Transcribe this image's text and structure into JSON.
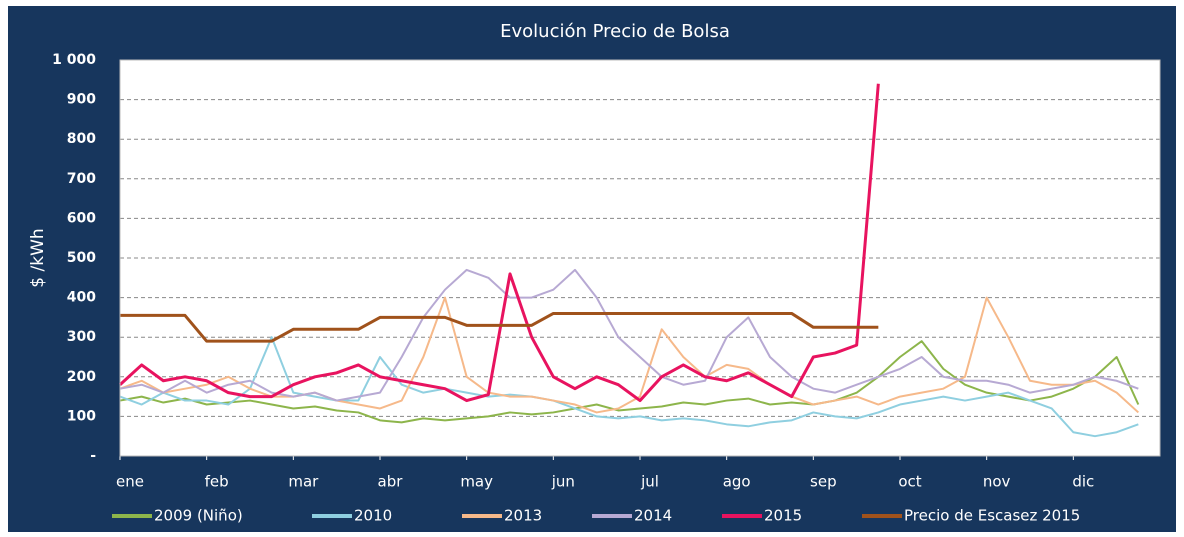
{
  "chart_data": {
    "type": "line",
    "title": "Evolución Precio de Bolsa",
    "y_label": "$ /kWh",
    "background": "#17365d",
    "xlim": [
      0,
      12
    ],
    "xticks": [
      {
        "value": 0,
        "label": "ene"
      },
      {
        "value": 1,
        "label": "feb"
      },
      {
        "value": 2,
        "label": "mar"
      },
      {
        "value": 3,
        "label": "abr"
      },
      {
        "value": 4,
        "label": "may"
      },
      {
        "value": 5,
        "label": "jun"
      },
      {
        "value": 6,
        "label": "jul"
      },
      {
        "value": 7,
        "label": "ago"
      },
      {
        "value": 8,
        "label": "sep"
      },
      {
        "value": 9,
        "label": "oct"
      },
      {
        "value": 10,
        "label": "nov"
      },
      {
        "value": 11,
        "label": "dic"
      }
    ],
    "ylim": [
      0,
      1000
    ],
    "yticks": [
      {
        "value": 0,
        "label": "-"
      },
      100,
      200,
      300,
      400,
      500,
      600,
      700,
      800,
      900,
      {
        "value": 1000,
        "label": "1 000"
      }
    ],
    "grid": true,
    "x": [
      0,
      0.25,
      0.5,
      0.75,
      1,
      1.25,
      1.5,
      1.75,
      2,
      2.25,
      2.5,
      2.75,
      3,
      3.25,
      3.5,
      3.75,
      4,
      4.25,
      4.5,
      4.75,
      5,
      5.25,
      5.5,
      5.75,
      6,
      6.25,
      6.5,
      6.75,
      7,
      7.25,
      7.5,
      7.75,
      8,
      8.25,
      8.5,
      8.75,
      9,
      9.25,
      9.5,
      9.75,
      10,
      10.25,
      10.5,
      10.75,
      11,
      11.25,
      11.5,
      11.75
    ],
    "series": [
      {
        "name": "2009 (Niño)",
        "color": "#8db54b",
        "width": 2,
        "values": [
          140,
          150,
          135,
          145,
          130,
          135,
          140,
          130,
          120,
          125,
          115,
          110,
          90,
          85,
          95,
          90,
          95,
          100,
          110,
          105,
          110,
          120,
          130,
          115,
          120,
          125,
          135,
          130,
          140,
          145,
          130,
          135,
          130,
          140,
          160,
          200,
          250,
          290,
          220,
          180,
          160,
          150,
          140,
          150,
          170,
          200,
          250,
          130
        ]
      },
      {
        "name": "2010",
        "color": "#8fcfe0",
        "width": 2,
        "values": [
          150,
          130,
          160,
          140,
          140,
          130,
          170,
          300,
          160,
          150,
          140,
          140,
          250,
          180,
          160,
          170,
          160,
          150,
          155,
          150,
          140,
          120,
          100,
          95,
          100,
          90,
          95,
          90,
          80,
          75,
          85,
          90,
          110,
          100,
          95,
          110,
          130,
          140,
          150,
          140,
          150,
          160,
          140,
          120,
          60,
          50,
          60,
          80
        ]
      },
      {
        "name": "2013",
        "color": "#f6b98a",
        "width": 2,
        "values": [
          170,
          190,
          160,
          170,
          180,
          200,
          170,
          150,
          150,
          160,
          140,
          130,
          120,
          140,
          250,
          400,
          200,
          160,
          150,
          150,
          140,
          130,
          110,
          120,
          150,
          320,
          250,
          200,
          230,
          220,
          180,
          150,
          130,
          140,
          150,
          130,
          150,
          160,
          170,
          200,
          400,
          300,
          190,
          180,
          180,
          190,
          160,
          110
        ]
      },
      {
        "name": "2014",
        "color": "#b7a9d3",
        "width": 2,
        "values": [
          170,
          180,
          160,
          190,
          160,
          180,
          190,
          160,
          150,
          160,
          140,
          150,
          160,
          250,
          350,
          420,
          470,
          450,
          400,
          400,
          420,
          470,
          400,
          300,
          250,
          200,
          180,
          190,
          300,
          350,
          250,
          200,
          170,
          160,
          180,
          200,
          220,
          250,
          200,
          190,
          190,
          180,
          160,
          170,
          180,
          200,
          190,
          170
        ]
      },
      {
        "name": "2015",
        "color": "#e8135f",
        "width": 3,
        "values": [
          180,
          230,
          190,
          200,
          190,
          160,
          150,
          150,
          180,
          200,
          210,
          230,
          200,
          190,
          180,
          170,
          140,
          155,
          460,
          300,
          200,
          170,
          200,
          180,
          140,
          200,
          230,
          200,
          190,
          210,
          180,
          150,
          250,
          260,
          280,
          940,
          null,
          null,
          null,
          null,
          null,
          null,
          null,
          null,
          null,
          null,
          null,
          null
        ]
      },
      {
        "name": "Precio de Escasez 2015",
        "color": "#a0521b",
        "width": 3,
        "values": [
          355,
          355,
          355,
          355,
          290,
          290,
          290,
          290,
          320,
          320,
          320,
          320,
          350,
          350,
          350,
          350,
          330,
          330,
          330,
          330,
          360,
          360,
          360,
          360,
          360,
          360,
          360,
          360,
          360,
          360,
          360,
          360,
          325,
          325,
          325,
          325,
          null,
          null,
          null,
          null,
          null,
          null,
          null,
          null,
          null,
          null,
          null,
          null
        ]
      }
    ]
  }
}
